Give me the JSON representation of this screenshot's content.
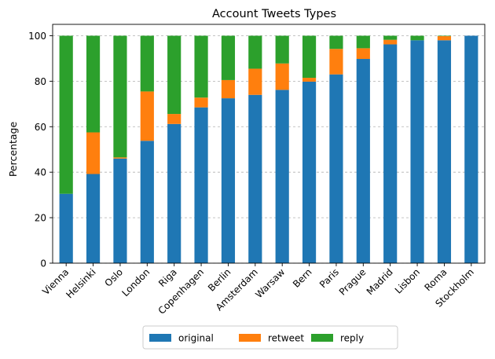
{
  "chart_data": {
    "type": "bar",
    "stacked": true,
    "title": "Account Tweets Types",
    "xlabel": "",
    "ylabel": "Percentage",
    "ylim": [
      0,
      105
    ],
    "yticks": [
      0,
      20,
      40,
      60,
      80,
      100
    ],
    "grid": "y-dashed",
    "legend_position": "bottom-center",
    "categories": [
      "Vienna",
      "Helsinki",
      "Oslo",
      "London",
      "Riga",
      "Copenhagen",
      "Berlin",
      "Amsterdam",
      "Warsaw",
      "Bern",
      "Paris",
      "Prague",
      "Madrid",
      "Lisbon",
      "Roma",
      "Stockholm"
    ],
    "series": [
      {
        "name": "original",
        "color": "#1f77b4",
        "values": [
          30.5,
          39.2,
          46.0,
          53.8,
          61.2,
          68.5,
          72.5,
          74.0,
          76.2,
          79.8,
          83.0,
          89.8,
          96.2,
          98.0,
          98.0,
          100.0
        ]
      },
      {
        "name": "retweet",
        "color": "#ff7f0e",
        "values": [
          0.0,
          18.3,
          0.5,
          21.7,
          4.4,
          4.3,
          8.0,
          11.5,
          11.6,
          1.7,
          11.2,
          4.7,
          2.0,
          0.0,
          1.8,
          0.0
        ]
      },
      {
        "name": "reply",
        "color": "#2ca02c",
        "values": [
          69.5,
          42.5,
          53.5,
          24.5,
          34.4,
          27.2,
          19.5,
          14.5,
          12.2,
          18.5,
          5.8,
          5.5,
          1.8,
          2.0,
          0.2,
          0.0
        ]
      }
    ]
  }
}
